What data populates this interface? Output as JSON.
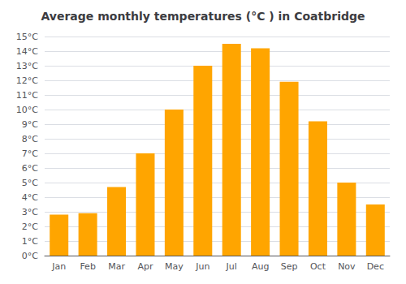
{
  "chart_data": {
    "type": "bar",
    "title": "Average monthly temperatures (°C ) in Coatbridge",
    "categories": [
      "Jan",
      "Feb",
      "Mar",
      "Apr",
      "May",
      "Jun",
      "Jul",
      "Aug",
      "Sep",
      "Oct",
      "Nov",
      "Dec"
    ],
    "values": [
      2.8,
      2.9,
      4.7,
      7.0,
      10.0,
      13.0,
      14.5,
      14.2,
      11.9,
      9.2,
      5.0,
      3.5
    ],
    "color": "#FFA500",
    "ylim": [
      0,
      15
    ],
    "yticks": [
      {
        "value": 0,
        "label": "0°C"
      },
      {
        "value": 1,
        "label": "1°C"
      },
      {
        "value": 2,
        "label": "2°C"
      },
      {
        "value": 3,
        "label": "3°C"
      },
      {
        "value": 4,
        "label": "4°C"
      },
      {
        "value": 5,
        "label": "5°C"
      },
      {
        "value": 6,
        "label": "6°C"
      },
      {
        "value": 7,
        "label": "7°C"
      },
      {
        "value": 8,
        "label": "8°C"
      },
      {
        "value": 9,
        "label": "9°C"
      },
      {
        "value": 10,
        "label": "10°C"
      },
      {
        "value": 11,
        "label": "11°C"
      },
      {
        "value": 12,
        "label": "12°C"
      },
      {
        "value": 13,
        "label": "13°C"
      },
      {
        "value": 14,
        "label": "14°C"
      },
      {
        "value": 15,
        "label": "15°C"
      }
    ],
    "grid": true
  }
}
